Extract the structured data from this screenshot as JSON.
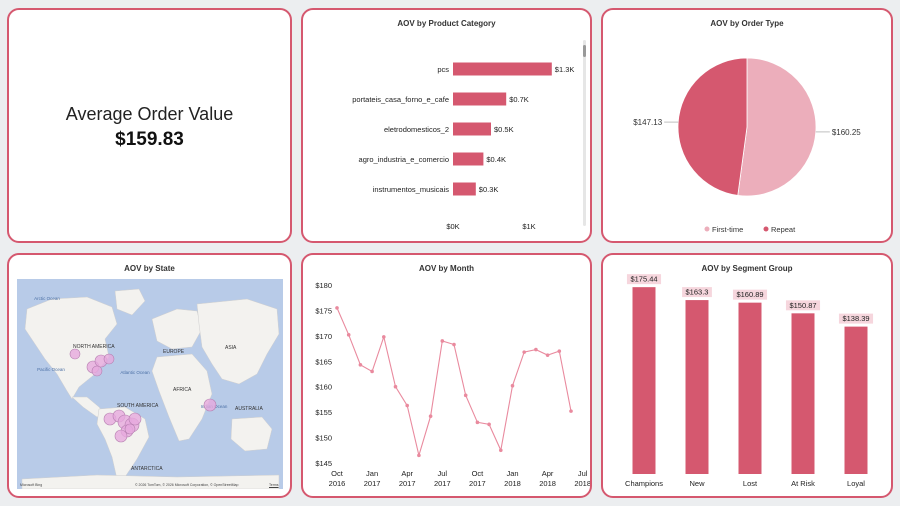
{
  "kpi": {
    "label": "Average Order Value",
    "value": "$159.83"
  },
  "category_chart": {
    "title": "AOV by Product Category",
    "categories": [
      "pcs",
      "portateis_casa_forno_e_cafe",
      "eletrodomesticos_2",
      "agro_industria_e_comercio",
      "instrumentos_musicais"
    ],
    "values": [
      1300,
      700,
      500,
      400,
      300
    ],
    "labels": [
      "$1.3K",
      "$0.7K",
      "$0.5K",
      "$0.4K",
      "$0.3K"
    ],
    "x_ticks": [
      "$0K",
      "$1K"
    ],
    "color": "#d5586f"
  },
  "order_type_chart": {
    "title": "AOV by Order Type",
    "slices": [
      {
        "name": "First-time",
        "value": 160.25,
        "label": "$160.25",
        "color": "#ecaebb"
      },
      {
        "name": "Repeat",
        "value": 147.13,
        "label": "$147.13",
        "color": "#d5586f"
      }
    ]
  },
  "state_map": {
    "title": "AOV by State",
    "labels": {
      "north_america": "NORTH AMERICA",
      "europe": "EUROPE",
      "asia": "ASIA",
      "africa": "AFRICA",
      "south_america": "SOUTH AMERICA",
      "australia": "AUSTRALIA",
      "antarctica": "ANTARCTICA",
      "arctic_ocean": "Arctic Ocean",
      "pacific_ocean": "Pacific Ocean",
      "atlantic_ocean": "Atlantic Ocean",
      "indian_ocean": "Indian Ocean"
    },
    "footer_brand": "Microsoft Bing",
    "footer_copyright": "© 2026 TomTom, © 2026 Microsoft Corporation, © OpenStreetMap",
    "footer_terms": "Terms"
  },
  "month_chart": {
    "title": "AOV by Month",
    "y_ticks": [
      "$180",
      "$175",
      "$170",
      "$165",
      "$160",
      "$155",
      "$150",
      "$145"
    ],
    "x_tick_months": [
      "Oct",
      "Jan",
      "Apr",
      "Jul",
      "Oct",
      "Jan",
      "Apr",
      "Jul"
    ],
    "x_tick_years": [
      "2016",
      "2017",
      "2017",
      "2017",
      "2017",
      "2018",
      "2018",
      "2018"
    ],
    "chart_data": {
      "type": "line",
      "x": [
        "2016-10",
        "2017-01",
        "2017-02",
        "2017-03",
        "2017-04",
        "2017-05",
        "2017-06",
        "2017-07",
        "2017-08",
        "2017-09",
        "2017-10",
        "2017-11",
        "2017-12",
        "2018-01",
        "2018-02",
        "2018-03",
        "2018-04",
        "2018-05",
        "2018-06",
        "2018-07",
        "2018-08"
      ],
      "values": [
        175.5,
        170.2,
        164.3,
        163.0,
        169.8,
        160.0,
        156.3,
        146.5,
        154.2,
        169.0,
        168.3,
        158.3,
        153.0,
        152.6,
        147.5,
        160.2,
        166.8,
        167.3,
        166.2,
        167.0,
        155.2
      ],
      "ylim": [
        145,
        180
      ],
      "color": "#e98a9e"
    }
  },
  "segment_chart": {
    "title": "AOV by Segment Group",
    "chart_data": {
      "type": "bar",
      "categories": [
        "Champions",
        "New",
        "Lost",
        "At Risk",
        "Loyal"
      ],
      "values": [
        175.44,
        163.3,
        160.89,
        150.87,
        138.39
      ],
      "labels": [
        "$175.44",
        "$163.3",
        "$160.89",
        "$150.87",
        "$138.39"
      ],
      "color": "#d5586f"
    }
  }
}
